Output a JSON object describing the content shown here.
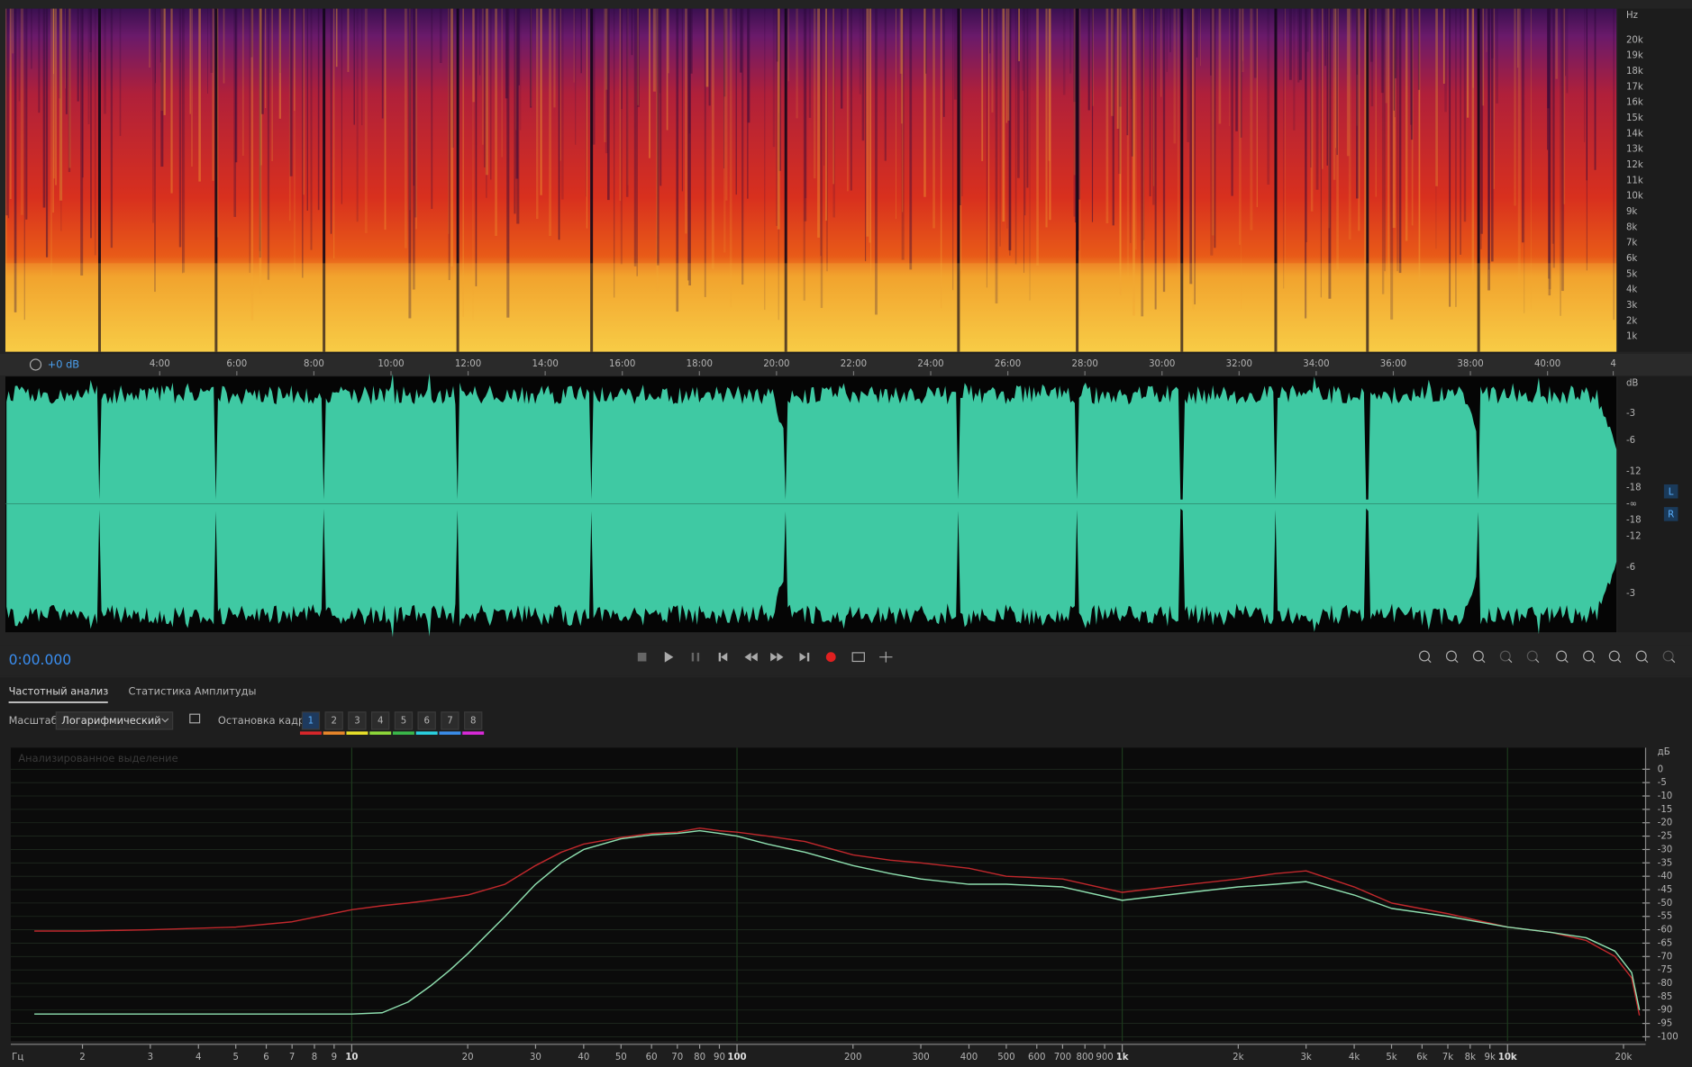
{
  "spectrogram": {
    "freq_labels": [
      "Hz",
      "20k",
      "19k",
      "18k",
      "17k",
      "16k",
      "15k",
      "14k",
      "13k",
      "12k",
      "11k",
      "10k",
      "9k",
      "8k",
      "7k",
      "6k",
      "5k",
      "4k",
      "3k",
      "2k",
      "1k"
    ]
  },
  "timeline": {
    "gain": "+0 dB",
    "labels": [
      "4:00",
      "6:00",
      "8:00",
      "10:00",
      "12:00",
      "14:00",
      "16:00",
      "18:00",
      "20:00",
      "22:00",
      "24:00",
      "26:00",
      "28:00",
      "30:00",
      "32:00",
      "34:00",
      "36:00",
      "38:00",
      "40:00",
      "4"
    ]
  },
  "waveform": {
    "db_labels": [
      "dB",
      "-3",
      "-6",
      "-12",
      "-18",
      "-∞",
      "-18",
      "-12",
      "-6",
      "-3"
    ],
    "channels": [
      "L",
      "R"
    ]
  },
  "transport": {
    "time": "0:00.000"
  },
  "panel": {
    "tabs": [
      "Частотный анализ",
      "Статистика Амплитуды"
    ],
    "scale_label": "Масштаб:",
    "scale_value": "Логарифмический",
    "hold_label": "Остановка кадра:",
    "hold_buttons": [
      "1",
      "2",
      "3",
      "4",
      "5",
      "6",
      "7",
      "8"
    ],
    "hold_colors": [
      "#d8262a",
      "#e8862a",
      "#e8e02a",
      "#8ed83a",
      "#3ab84a",
      "#2ad0e0",
      "#3a8ce8",
      "#d82ad8"
    ]
  },
  "chart_data": {
    "type": "line",
    "annotation": "Анализированное выделение",
    "x_unit": "Гц",
    "y_unit": "дБ",
    "log_x": true,
    "grid": true,
    "xlim": [
      1.32,
      22100
    ],
    "ylim": [
      -100,
      0
    ],
    "xticks": [
      2,
      3,
      4,
      5,
      6,
      7,
      8,
      9,
      10,
      20,
      30,
      40,
      50,
      60,
      70,
      80,
      90,
      100,
      200,
      300,
      400,
      500,
      600,
      700,
      800,
      900,
      {
        "value": 1000,
        "label": "1k"
      },
      {
        "value": 2000,
        "label": "2k"
      },
      {
        "value": 3000,
        "label": "3k"
      },
      {
        "value": 4000,
        "label": "4k"
      },
      {
        "value": 5000,
        "label": "5k"
      },
      {
        "value": 6000,
        "label": "6k"
      },
      {
        "value": 7000,
        "label": "7k"
      },
      {
        "value": 8000,
        "label": "8k"
      },
      {
        "value": 9000,
        "label": "9k"
      },
      {
        "value": 10000,
        "label": "10k"
      },
      {
        "value": 20000,
        "label": "20k"
      }
    ],
    "yticks": [
      0,
      -5,
      -10,
      -15,
      -20,
      -25,
      -30,
      -35,
      -40,
      -45,
      -50,
      -55,
      -60,
      -65,
      -70,
      -75,
      -80,
      -85,
      -90,
      -95,
      -100
    ],
    "x": [
      1.5,
      2,
      3,
      5,
      7,
      10,
      12,
      14,
      16,
      18,
      20,
      25,
      30,
      35,
      40,
      50,
      60,
      70,
      80,
      90,
      100,
      120,
      150,
      200,
      250,
      300,
      400,
      500,
      700,
      1000,
      1500,
      2000,
      2500,
      3000,
      4000,
      5000,
      7000,
      10000,
      13000,
      16000,
      19000,
      21000,
      22000
    ],
    "series": [
      {
        "color": "#c0282c",
        "values": [
          -60.5,
          -60.5,
          -60,
          -59,
          -57,
          -52.5,
          -51,
          -50,
          -49,
          -48,
          -47,
          -43,
          -36,
          -31,
          -28,
          -25.5,
          -24,
          -23.5,
          -22,
          -23,
          -23.5,
          -25,
          -27,
          -32,
          -34,
          -35,
          -37,
          -40,
          -41,
          -46,
          -43,
          -41,
          -39,
          -38,
          -44,
          -50,
          -54,
          -59,
          -61,
          -64,
          -70,
          -78,
          -92
        ]
      },
      {
        "color": "#8fe0b0",
        "values": [
          -91.5,
          -91.5,
          -91.5,
          -91.5,
          -91.5,
          -91.5,
          -91,
          -87,
          -81,
          -75,
          -69,
          -55,
          -43,
          -35,
          -30,
          -26,
          -24.5,
          -24,
          -23,
          -24,
          -25,
          -28,
          -31,
          -36,
          -39,
          -41,
          -43,
          -43,
          -44,
          -49,
          -46,
          -44,
          -43,
          -42,
          -47,
          -52,
          -55,
          -59,
          -61,
          -63,
          -68,
          -76,
          -90
        ]
      }
    ]
  }
}
